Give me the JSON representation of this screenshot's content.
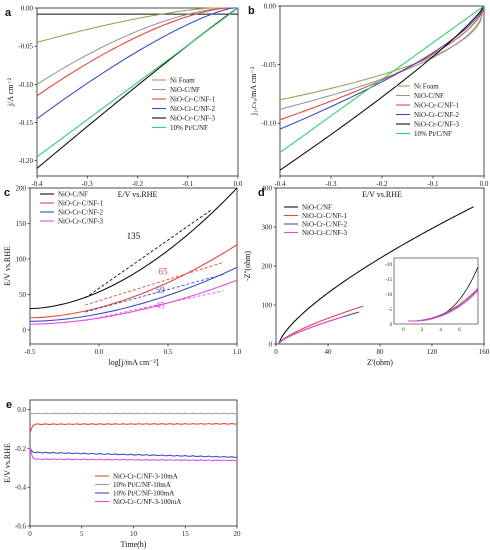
{
  "colors": {
    "ni_foam": "#a4a05a",
    "nio_c": "#9a9a9a",
    "cr1": "#e8473f",
    "cr2": "#3c4fc4",
    "cr3": "#111111",
    "ptc": "#2ed36a",
    "magenta": "#e050e0"
  },
  "chart_data": [
    {
      "id": "a",
      "panel_label": "a",
      "type": "line",
      "xlabel": "E/V vs.RHE",
      "ylabel": "j/A cm⁻²",
      "xlim": [
        -0.4,
        0.0
      ],
      "ylim": [
        -0.22,
        0.0
      ],
      "xticks": [
        "-0.4",
        "-0.3",
        "-0.2",
        "-0.1",
        "0.0"
      ],
      "yticks": [
        "0.00",
        "-0.05",
        "-0.10",
        "-0.15",
        "-0.20"
      ],
      "legend_position": "bottom-right",
      "series": [
        {
          "name": "Ni Foam",
          "color": "#a4a05a",
          "onset": -0.05,
          "end": -0.045,
          "shape": 1.4
        },
        {
          "name": "NiO-C/NF",
          "color": "#9a9a9a",
          "onset": -0.02,
          "end": -0.1,
          "shape": 1.6
        },
        {
          "name": "NiO-Cr-C/NF-1",
          "color": "#e8473f",
          "onset": -0.02,
          "end": -0.115,
          "shape": 1.5
        },
        {
          "name": "NiO-Cr-C/NF-2",
          "color": "#3c4fc4",
          "onset": -0.01,
          "end": -0.145,
          "shape": 1.3
        },
        {
          "name": "NiO-Cr-C/NF-3",
          "color": "#111111",
          "onset": 0.0,
          "end": -0.21,
          "shape": 1.05
        },
        {
          "name": "10% Pt/C/NF",
          "color": "#2ed36a",
          "onset": 0.0,
          "end": -0.195,
          "shape": 1.0
        }
      ],
      "extra_lines": [
        {
          "y": -0.008,
          "color": "#111111"
        }
      ]
    },
    {
      "id": "b",
      "panel_label": "b",
      "type": "line",
      "xlabel": "E/V vs.RHE",
      "ylabel": "j₁ₑᴄₛₐ/mA cm⁻²",
      "xlim": [
        -0.4,
        0.0
      ],
      "ylim": [
        -0.145,
        0.0
      ],
      "xticks": [
        "-0.4",
        "-0.3",
        "-0.2",
        "-0.1",
        "0.0"
      ],
      "yticks": [
        "0.00",
        "-0.05",
        "-0.10"
      ],
      "legend_position": "bottom-right",
      "series": [
        {
          "name": "Ni Foam",
          "color": "#a4a05a",
          "end": -0.08,
          "shape": 0.45
        },
        {
          "name": "NiO-C/NF",
          "color": "#9a9a9a",
          "end": -0.088,
          "shape": 0.5
        },
        {
          "name": "NiO-Cr-C/NF-1",
          "color": "#e8473f",
          "end": -0.097,
          "shape": 0.62
        },
        {
          "name": "NiO-Cr-C/NF-2",
          "color": "#3c4fc4",
          "end": -0.105,
          "shape": 0.7
        },
        {
          "name": "NiO-Cr-C/NF-3",
          "color": "#111111",
          "end": -0.14,
          "shape": 0.85
        },
        {
          "name": "10% Pt/C/NF",
          "color": "#2ed36a",
          "end": -0.125,
          "shape": 1.0
        }
      ]
    },
    {
      "id": "c",
      "panel_label": "c",
      "type": "line",
      "xlabel": "log[j/mA cm⁻²]",
      "ylabel": "E/V vs.RHE",
      "xlim": [
        -0.5,
        1.0
      ],
      "ylim": [
        -20,
        200
      ],
      "xticks": [
        "-0.5",
        "0.0",
        "0.5",
        "1.0"
      ],
      "yticks": [
        "0",
        "50",
        "100",
        "150",
        "200"
      ],
      "legend_position": "top-left",
      "series": [
        {
          "name": "NiO-C/NF",
          "color": "#111111",
          "y0": 30,
          "y1": 200
        },
        {
          "name": "NiO-Cr-C/NF-1",
          "color": "#e8473f",
          "y0": 17,
          "y1": 120
        },
        {
          "name": "NiO-Cr-C/NF-2",
          "color": "#3c4fc4",
          "y0": 12,
          "y1": 88
        },
        {
          "name": "NiO-Cr-C/NF-3",
          "color": "#e050e0",
          "y0": 8,
          "y1": 70
        }
      ],
      "tafel": [
        {
          "value": "135",
          "color": "#111111",
          "x0": -0.1,
          "y0": 45,
          "x1": 0.82,
          "y1": 170,
          "tx": 0.2,
          "ty": 128
        },
        {
          "value": "65",
          "color": "#e8473f",
          "x0": -0.1,
          "y0": 35,
          "x1": 0.9,
          "y1": 95,
          "tx": 0.43,
          "ty": 78
        },
        {
          "value": "59",
          "color": "#3c4fc4",
          "x0": -0.1,
          "y0": 25,
          "x1": 0.9,
          "y1": 78,
          "tx": 0.41,
          "ty": 52
        },
        {
          "value": "45",
          "color": "#e050e0",
          "x0": -0.1,
          "y0": 13,
          "x1": 0.9,
          "y1": 55,
          "tx": 0.41,
          "ty": 30
        }
      ]
    },
    {
      "id": "d",
      "panel_label": "d",
      "type": "line",
      "xlabel": "Z'(ohm)",
      "ylabel": "-Z''(ohm)",
      "xlim": [
        0,
        160
      ],
      "ylim": [
        0,
        400
      ],
      "xticks": [
        "0",
        "40",
        "80",
        "120",
        "160"
      ],
      "yticks": [
        "0",
        "100",
        "200",
        "300",
        "400"
      ],
      "legend_position": "top-left",
      "series": [
        {
          "name": "NiO-C/NF",
          "color": "#111111",
          "xend": 152,
          "yend": 352
        },
        {
          "name": "NiO-Cr-C/NF-1",
          "color": "#e8473f",
          "xend": 67,
          "yend": 97
        },
        {
          "name": "NiO-Cr-C/NF-2",
          "color": "#3c4fc4",
          "xend": 64,
          "yend": 82
        },
        {
          "name": "NiO-Cr-C/NF-3",
          "color": "#e050e0",
          "xend": 52,
          "yend": 70
        }
      ],
      "inset": {
        "xticks": [
          "0",
          "2",
          "4",
          "6"
        ],
        "yticks": [
          "0",
          "-5",
          "-10",
          "-15",
          "-20"
        ]
      }
    },
    {
      "id": "e",
      "panel_label": "e",
      "type": "line",
      "xlabel": "Time(h)",
      "ylabel": "E/V vs.RHE",
      "xlim": [
        0,
        20
      ],
      "ylim": [
        -0.6,
        0.05
      ],
      "xticks": [
        "0",
        "5",
        "10",
        "15",
        "20"
      ],
      "yticks": [
        "0.0",
        "-0.2",
        "-0.4",
        "-0.6"
      ],
      "legend_position": "bottom-right",
      "series": [
        {
          "name": "NiO-Cr-C/NF-3-10mA",
          "color": "#e8473f",
          "start": -0.12,
          "level": -0.075,
          "end": -0.073
        },
        {
          "name": "10% Pt/C/NF-10mA",
          "color": "#9a9a9a",
          "start": -0.02,
          "level": -0.02,
          "end": -0.02
        },
        {
          "name": "10% Pt/C/NF-100mA",
          "color": "#3c4fc4",
          "start": -0.2,
          "level": -0.22,
          "end": -0.245
        },
        {
          "name": "NiO-Cr-C/NF-3-100mA",
          "color": "#e050e0",
          "start": -0.2,
          "level": -0.255,
          "end": -0.262
        }
      ]
    }
  ]
}
